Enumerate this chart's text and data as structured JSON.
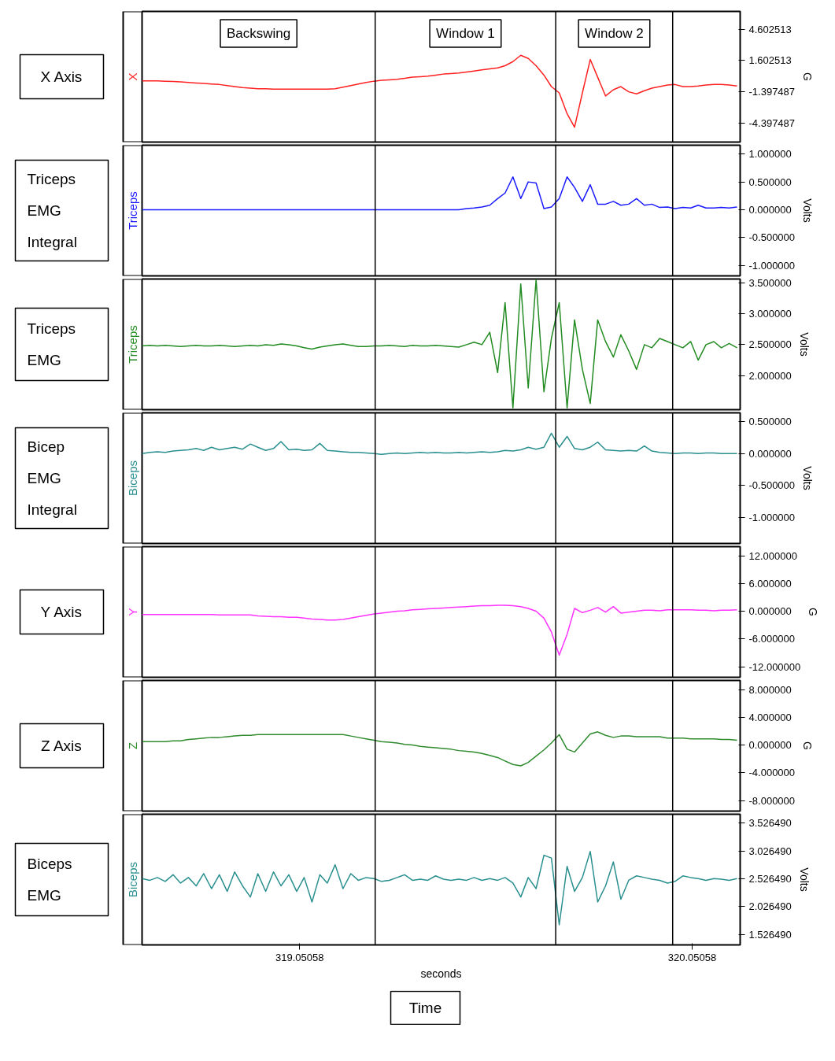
{
  "chart_data": [
    {
      "type": "line",
      "title": "X Axis",
      "ylabel": "G",
      "xlim": [
        318.649,
        320.173
      ],
      "tick_labels": "y",
      "ylim": [
        -6.22,
        6.31
      ],
      "yticks": [
        {
          "value": 4.602513,
          "label": "4.602513"
        },
        {
          "value": 1.602513,
          "label": "1.602513"
        },
        {
          "value": -1.397487,
          "label": "-1.397487"
        },
        {
          "value": -4.397487,
          "label": "-4.397487"
        }
      ],
      "grid": false,
      "x": [
        318.649,
        318.669,
        318.688,
        318.708,
        318.728,
        318.747,
        318.767,
        318.787,
        318.806,
        318.826,
        318.846,
        318.866,
        318.885,
        318.905,
        318.925,
        318.944,
        318.964,
        318.984,
        319.003,
        319.023,
        319.043,
        319.062,
        319.082,
        319.102,
        319.121,
        319.141,
        319.161,
        319.181,
        319.2,
        319.22,
        319.24,
        319.259,
        319.279,
        319.299,
        319.318,
        319.338,
        319.358,
        319.377,
        319.397,
        319.417,
        319.436,
        319.456,
        319.476,
        319.495,
        319.515,
        319.535,
        319.555,
        319.574,
        319.594,
        319.614,
        319.633,
        319.653,
        319.673,
        319.692,
        319.712,
        319.732,
        319.751,
        319.771,
        319.791,
        319.81,
        319.83,
        319.85,
        319.869,
        319.889,
        319.909,
        319.929,
        319.948,
        319.968,
        319.988,
        320.007,
        320.027,
        320.047,
        320.066,
        320.086,
        320.106,
        320.125,
        320.145,
        320.165
      ],
      "series": [
        {
          "name": "X",
          "color": "#ff2020",
          "values": [
            -0.36,
            -0.36,
            -0.36,
            -0.38,
            -0.4,
            -0.45,
            -0.5,
            -0.55,
            -0.6,
            -0.65,
            -0.7,
            -0.8,
            -0.9,
            -1.0,
            -1.05,
            -1.1,
            -1.1,
            -1.15,
            -1.15,
            -1.15,
            -1.15,
            -1.15,
            -1.15,
            -1.15,
            -1.15,
            -1.1,
            -0.95,
            -0.8,
            -0.65,
            -0.5,
            -0.38,
            -0.3,
            -0.25,
            -0.2,
            -0.1,
            0.0,
            0.05,
            0.1,
            0.2,
            0.3,
            0.35,
            0.4,
            0.5,
            0.6,
            0.7,
            0.8,
            0.9,
            1.1,
            1.5,
            2.1,
            1.8,
            1.1,
            0.2,
            -0.9,
            -1.5,
            -3.5,
            -4.8,
            -1.5,
            1.7,
            0.0,
            -1.8,
            -1.2,
            -0.9,
            -1.4,
            -1.6,
            -1.3,
            -1.05,
            -0.9,
            -0.75,
            -0.7,
            -0.9,
            -0.9,
            -0.85,
            -0.75,
            -0.7,
            -0.7,
            -0.75,
            -0.85
          ]
        }
      ],
      "ref_lines": [
        {
          "axis": "x",
          "value": 319.243
        },
        {
          "axis": "x",
          "value": 319.703
        },
        {
          "axis": "x",
          "value": 320.001
        }
      ],
      "annotations": [
        "Backswing",
        "Window 1",
        "Window 2"
      ]
    },
    {
      "type": "line",
      "title": "Triceps EMG Integral",
      "ylabel": "Volts",
      "xlim": [
        318.649,
        320.173
      ],
      "tick_labels": "y",
      "ylim": [
        -1.19,
        1.16
      ],
      "yticks": [
        {
          "value": 1,
          "label": "1.000000"
        },
        {
          "value": 0.5,
          "label": "0.500000"
        },
        {
          "value": 0,
          "label": "0.000000"
        },
        {
          "value": -0.5,
          "label": "-0.500000"
        },
        {
          "value": -1,
          "label": "-1.000000"
        }
      ],
      "grid": false,
      "x": [
        318.649,
        318.669,
        318.688,
        318.708,
        318.728,
        318.747,
        318.767,
        318.787,
        318.806,
        318.826,
        318.846,
        318.866,
        318.885,
        318.905,
        318.925,
        318.944,
        318.964,
        318.984,
        319.003,
        319.023,
        319.043,
        319.062,
        319.082,
        319.102,
        319.121,
        319.141,
        319.161,
        319.181,
        319.2,
        319.22,
        319.24,
        319.259,
        319.279,
        319.299,
        319.318,
        319.338,
        319.358,
        319.377,
        319.397,
        319.417,
        319.436,
        319.456,
        319.476,
        319.495,
        319.515,
        319.535,
        319.555,
        319.574,
        319.594,
        319.614,
        319.633,
        319.653,
        319.673,
        319.692,
        319.712,
        319.732,
        319.751,
        319.771,
        319.791,
        319.81,
        319.83,
        319.85,
        319.869,
        319.889,
        319.909,
        319.929,
        319.948,
        319.968,
        319.988,
        320.007,
        320.027,
        320.047,
        320.066,
        320.086,
        320.106,
        320.125,
        320.145,
        320.165
      ],
      "series": [
        {
          "name": "Triceps",
          "color": "#1a1aff",
          "values": [
            0,
            0,
            0,
            0,
            0,
            0,
            0,
            0,
            0,
            0,
            0,
            0,
            0,
            0,
            0,
            0,
            0,
            0,
            0,
            0,
            0,
            0,
            0,
            0,
            0,
            0,
            0,
            0,
            0,
            0,
            0,
            0,
            0,
            0,
            0,
            0,
            0,
            0,
            0,
            0,
            0,
            0,
            0.02,
            0.03,
            0.05,
            0.08,
            0.2,
            0.3,
            0.59,
            0.2,
            0.5,
            0.48,
            0.02,
            0.05,
            0.2,
            0.59,
            0.4,
            0.15,
            0.45,
            0.1,
            0.1,
            0.15,
            0.08,
            0.1,
            0.2,
            0.08,
            0.1,
            0.04,
            0.05,
            0.02,
            0.04,
            0.03,
            0.08,
            0.03,
            0.03,
            0.04,
            0.03,
            0.05
          ]
        }
      ],
      "ref_lines": [
        {
          "axis": "x",
          "value": 319.243
        },
        {
          "axis": "x",
          "value": 319.703
        },
        {
          "axis": "x",
          "value": 320.001
        }
      ]
    },
    {
      "type": "line",
      "title": "Triceps EMG",
      "ylabel": "Volts",
      "xlim": [
        318.649,
        320.173
      ],
      "tick_labels": "y",
      "ylim": [
        1.45,
        3.56
      ],
      "yticks": [
        {
          "value": 3.5,
          "label": "3.500000"
        },
        {
          "value": 3,
          "label": "3.000000"
        },
        {
          "value": 2.5,
          "label": "2.500000"
        },
        {
          "value": 2,
          "label": "2.000000"
        }
      ],
      "grid": false,
      "x": [
        318.649,
        318.669,
        318.688,
        318.708,
        318.728,
        318.747,
        318.767,
        318.787,
        318.806,
        318.826,
        318.846,
        318.866,
        318.885,
        318.905,
        318.925,
        318.944,
        318.964,
        318.984,
        319.003,
        319.023,
        319.043,
        319.062,
        319.082,
        319.102,
        319.121,
        319.141,
        319.161,
        319.181,
        319.2,
        319.22,
        319.24,
        319.259,
        319.279,
        319.299,
        319.318,
        319.338,
        319.358,
        319.377,
        319.397,
        319.417,
        319.436,
        319.456,
        319.476,
        319.495,
        319.515,
        319.535,
        319.555,
        319.574,
        319.594,
        319.614,
        319.633,
        319.653,
        319.673,
        319.692,
        319.712,
        319.732,
        319.751,
        319.771,
        319.791,
        319.81,
        319.83,
        319.85,
        319.869,
        319.889,
        319.909,
        319.929,
        319.948,
        319.968,
        319.988,
        320.007,
        320.027,
        320.047,
        320.066,
        320.086,
        320.106,
        320.125,
        320.145,
        320.165
      ],
      "series": [
        {
          "name": "Triceps",
          "color": "#228b22",
          "values": [
            2.48,
            2.49,
            2.48,
            2.49,
            2.48,
            2.47,
            2.48,
            2.49,
            2.48,
            2.48,
            2.49,
            2.48,
            2.47,
            2.48,
            2.49,
            2.48,
            2.5,
            2.49,
            2.51,
            2.5,
            2.48,
            2.45,
            2.43,
            2.46,
            2.48,
            2.5,
            2.51,
            2.49,
            2.47,
            2.47,
            2.48,
            2.48,
            2.49,
            2.48,
            2.47,
            2.49,
            2.48,
            2.48,
            2.49,
            2.48,
            2.47,
            2.46,
            2.5,
            2.54,
            2.5,
            2.7,
            2.05,
            3.18,
            1.48,
            3.48,
            1.8,
            3.55,
            1.74,
            2.6,
            3.18,
            1.48,
            2.9,
            2.1,
            1.55,
            2.9,
            2.55,
            2.3,
            2.66,
            2.4,
            2.1,
            2.5,
            2.45,
            2.6,
            2.55,
            2.5,
            2.45,
            2.55,
            2.25,
            2.5,
            2.55,
            2.45,
            2.52,
            2.45
          ]
        }
      ],
      "ref_lines": [
        {
          "axis": "x",
          "value": 319.243
        },
        {
          "axis": "x",
          "value": 319.703
        },
        {
          "axis": "x",
          "value": 320.001
        }
      ]
    },
    {
      "type": "line",
      "title": "Bicep EMG Integral",
      "ylabel": "Volts",
      "xlim": [
        318.649,
        320.173
      ],
      "tick_labels": "y",
      "ylim": [
        -1.41,
        0.64
      ],
      "yticks": [
        {
          "value": 0.5,
          "label": "0.500000"
        },
        {
          "value": 0,
          "label": "0.000000"
        },
        {
          "value": -0.5,
          "label": "-0.500000"
        },
        {
          "value": -1,
          "label": "-1.000000"
        }
      ],
      "grid": false,
      "x": [
        318.649,
        318.669,
        318.688,
        318.708,
        318.728,
        318.747,
        318.767,
        318.787,
        318.806,
        318.826,
        318.846,
        318.866,
        318.885,
        318.905,
        318.925,
        318.944,
        318.964,
        318.984,
        319.003,
        319.023,
        319.043,
        319.062,
        319.082,
        319.102,
        319.121,
        319.141,
        319.161,
        319.181,
        319.2,
        319.22,
        319.24,
        319.259,
        319.279,
        319.299,
        319.318,
        319.338,
        319.358,
        319.377,
        319.397,
        319.417,
        319.436,
        319.456,
        319.476,
        319.495,
        319.515,
        319.535,
        319.555,
        319.574,
        319.594,
        319.614,
        319.633,
        319.653,
        319.673,
        319.692,
        319.712,
        319.732,
        319.751,
        319.771,
        319.791,
        319.81,
        319.83,
        319.85,
        319.869,
        319.889,
        319.909,
        319.929,
        319.948,
        319.968,
        319.988,
        320.007,
        320.027,
        320.047,
        320.066,
        320.086,
        320.106,
        320.125,
        320.145,
        320.165
      ],
      "series": [
        {
          "name": "Biceps",
          "color": "#2a8f8f",
          "values": [
            0.0,
            0.02,
            0.03,
            0.02,
            0.04,
            0.05,
            0.06,
            0.08,
            0.05,
            0.1,
            0.06,
            0.08,
            0.1,
            0.07,
            0.15,
            0.1,
            0.05,
            0.08,
            0.19,
            0.06,
            0.07,
            0.05,
            0.06,
            0.16,
            0.05,
            0.04,
            0.03,
            0.02,
            0.02,
            0.01,
            0.0,
            -0.01,
            0.0,
            0.01,
            0.0,
            0.01,
            0.02,
            0.01,
            0.02,
            0.01,
            0.01,
            0.02,
            0.01,
            0.02,
            0.03,
            0.02,
            0.03,
            0.05,
            0.04,
            0.06,
            0.1,
            0.07,
            0.1,
            0.32,
            0.1,
            0.27,
            0.08,
            0.06,
            0.1,
            0.18,
            0.06,
            0.05,
            0.04,
            0.05,
            0.04,
            0.12,
            0.04,
            0.02,
            0.01,
            0.0,
            0.01,
            0.01,
            0.0,
            0.01,
            0.01,
            0.0,
            0.0,
            0.0
          ]
        }
      ],
      "ref_lines": [
        {
          "axis": "x",
          "value": 319.243
        },
        {
          "axis": "x",
          "value": 319.703
        },
        {
          "axis": "x",
          "value": 320.001
        }
      ]
    },
    {
      "type": "line",
      "title": "Y Axis",
      "ylabel": "G",
      "xlim": [
        318.649,
        320.173
      ],
      "tick_labels": "y",
      "ylim": [
        -14.29,
        13.96
      ],
      "yticks": [
        {
          "value": 12,
          "label": "12.000000"
        },
        {
          "value": 6,
          "label": "6.000000"
        },
        {
          "value": 0,
          "label": "0.000000"
        },
        {
          "value": -6,
          "label": "-6.000000"
        },
        {
          "value": -12,
          "label": "-12.000000"
        }
      ],
      "grid": false,
      "x": [
        318.649,
        318.669,
        318.688,
        318.708,
        318.728,
        318.747,
        318.767,
        318.787,
        318.806,
        318.826,
        318.846,
        318.866,
        318.885,
        318.905,
        318.925,
        318.944,
        318.964,
        318.984,
        319.003,
        319.023,
        319.043,
        319.062,
        319.082,
        319.102,
        319.121,
        319.141,
        319.161,
        319.181,
        319.2,
        319.22,
        319.24,
        319.259,
        319.279,
        319.299,
        319.318,
        319.338,
        319.358,
        319.377,
        319.397,
        319.417,
        319.436,
        319.456,
        319.476,
        319.495,
        319.515,
        319.535,
        319.555,
        319.574,
        319.594,
        319.614,
        319.633,
        319.653,
        319.673,
        319.692,
        319.712,
        319.732,
        319.751,
        319.771,
        319.791,
        319.81,
        319.83,
        319.85,
        319.869,
        319.889,
        319.909,
        319.929,
        319.948,
        319.968,
        319.988,
        320.007,
        320.027,
        320.047,
        320.066,
        320.086,
        320.106,
        320.125,
        320.145,
        320.165
      ],
      "series": [
        {
          "name": "Y",
          "color": "#ff33ff",
          "values": [
            -0.7,
            -0.7,
            -0.7,
            -0.7,
            -0.7,
            -0.7,
            -0.7,
            -0.7,
            -0.7,
            -0.7,
            -0.8,
            -0.8,
            -0.8,
            -0.8,
            -0.8,
            -1.0,
            -1.1,
            -1.2,
            -1.2,
            -1.3,
            -1.3,
            -1.5,
            -1.7,
            -1.8,
            -1.9,
            -1.9,
            -1.8,
            -1.5,
            -1.2,
            -0.9,
            -0.6,
            -0.4,
            -0.2,
            0.0,
            0.1,
            0.3,
            0.4,
            0.5,
            0.6,
            0.7,
            0.8,
            0.9,
            1.0,
            1.1,
            1.2,
            1.2,
            1.3,
            1.3,
            1.2,
            1.0,
            0.6,
            0.0,
            -1.5,
            -4.5,
            -9.5,
            -5.0,
            0.6,
            -0.3,
            0.2,
            0.8,
            -0.2,
            1.0,
            -0.4,
            -0.2,
            0.0,
            0.2,
            0.2,
            0.1,
            0.3,
            0.3,
            0.3,
            0.3,
            0.2,
            0.2,
            0.1,
            0.2,
            0.2,
            0.3
          ]
        }
      ],
      "ref_lines": [
        {
          "axis": "x",
          "value": 319.243
        },
        {
          "axis": "x",
          "value": 319.703
        },
        {
          "axis": "x",
          "value": 320.001
        }
      ]
    },
    {
      "type": "line",
      "title": "Z Axis",
      "ylabel": "G",
      "xlim": [
        318.649,
        320.173
      ],
      "tick_labels": "y",
      "ylim": [
        -9.52,
        9.31
      ],
      "yticks": [
        {
          "value": 8,
          "label": "8.000000"
        },
        {
          "value": 4,
          "label": "4.000000"
        },
        {
          "value": 0,
          "label": "0.000000"
        },
        {
          "value": -4,
          "label": "-4.000000"
        },
        {
          "value": -8,
          "label": "-8.000000"
        }
      ],
      "grid": false,
      "x": [
        318.649,
        318.669,
        318.688,
        318.708,
        318.728,
        318.747,
        318.767,
        318.787,
        318.806,
        318.826,
        318.846,
        318.866,
        318.885,
        318.905,
        318.925,
        318.944,
        318.964,
        318.984,
        319.003,
        319.023,
        319.043,
        319.062,
        319.082,
        319.102,
        319.121,
        319.141,
        319.161,
        319.181,
        319.2,
        319.22,
        319.24,
        319.259,
        319.279,
        319.299,
        319.318,
        319.338,
        319.358,
        319.377,
        319.397,
        319.417,
        319.436,
        319.456,
        319.476,
        319.495,
        319.515,
        319.535,
        319.555,
        319.574,
        319.594,
        319.614,
        319.633,
        319.653,
        319.673,
        319.692,
        319.712,
        319.732,
        319.751,
        319.771,
        319.791,
        319.81,
        319.83,
        319.85,
        319.869,
        319.889,
        319.909,
        319.929,
        319.948,
        319.968,
        319.988,
        320.007,
        320.027,
        320.047,
        320.066,
        320.086,
        320.106,
        320.125,
        320.145,
        320.165
      ],
      "series": [
        {
          "name": "Z",
          "color": "#2e8b2e",
          "values": [
            0.5,
            0.5,
            0.5,
            0.5,
            0.6,
            0.6,
            0.8,
            0.9,
            1.0,
            1.1,
            1.1,
            1.2,
            1.3,
            1.4,
            1.4,
            1.5,
            1.5,
            1.5,
            1.5,
            1.5,
            1.5,
            1.5,
            1.5,
            1.5,
            1.5,
            1.5,
            1.5,
            1.3,
            1.1,
            0.9,
            0.7,
            0.5,
            0.4,
            0.3,
            0.1,
            0.0,
            -0.2,
            -0.3,
            -0.4,
            -0.5,
            -0.6,
            -0.8,
            -0.9,
            -1.0,
            -1.2,
            -1.5,
            -1.8,
            -2.3,
            -2.8,
            -3.0,
            -2.5,
            -1.6,
            -0.7,
            0.3,
            1.5,
            -0.6,
            -1.0,
            0.3,
            1.6,
            1.9,
            1.4,
            1.1,
            1.3,
            1.3,
            1.2,
            1.2,
            1.2,
            1.2,
            1.0,
            1.0,
            1.0,
            0.9,
            0.9,
            0.9,
            0.9,
            0.8,
            0.8,
            0.7
          ]
        }
      ],
      "ref_lines": [
        {
          "axis": "x",
          "value": 319.243
        },
        {
          "axis": "x",
          "value": 319.703
        },
        {
          "axis": "x",
          "value": 320.001
        }
      ]
    },
    {
      "type": "line",
      "title": "Biceps EMG",
      "ylabel": "Volts",
      "xlabel": "seconds",
      "xlim": [
        318.649,
        320.173
      ],
      "xticks": [
        319.05058,
        320.05058
      ],
      "ylim": [
        1.339,
        3.687
      ],
      "yticks": [
        {
          "value": 3.52649,
          "label": "3.526490"
        },
        {
          "value": 3.02649,
          "label": "3.026490"
        },
        {
          "value": 2.52649,
          "label": "2.526490"
        },
        {
          "value": 2.02649,
          "label": "2.026490"
        },
        {
          "value": 1.52649,
          "label": "1.526490"
        }
      ],
      "grid": false,
      "x": [
        318.649,
        318.669,
        318.688,
        318.708,
        318.728,
        318.747,
        318.767,
        318.787,
        318.806,
        318.826,
        318.846,
        318.866,
        318.885,
        318.905,
        318.925,
        318.944,
        318.964,
        318.984,
        319.003,
        319.023,
        319.043,
        319.062,
        319.082,
        319.102,
        319.121,
        319.141,
        319.161,
        319.181,
        319.2,
        319.22,
        319.24,
        319.259,
        319.279,
        319.299,
        319.318,
        319.338,
        319.358,
        319.377,
        319.397,
        319.417,
        319.436,
        319.456,
        319.476,
        319.495,
        319.515,
        319.535,
        319.555,
        319.574,
        319.594,
        319.614,
        319.633,
        319.653,
        319.673,
        319.692,
        319.712,
        319.732,
        319.751,
        319.771,
        319.791,
        319.81,
        319.83,
        319.85,
        319.869,
        319.889,
        319.909,
        319.929,
        319.948,
        319.968,
        319.988,
        320.007,
        320.027,
        320.047,
        320.066,
        320.086,
        320.106,
        320.125,
        320.145,
        320.165
      ],
      "series": [
        {
          "name": "Biceps",
          "color": "#2a8f8f",
          "values": [
            2.53,
            2.5,
            2.55,
            2.48,
            2.6,
            2.45,
            2.55,
            2.4,
            2.62,
            2.35,
            2.6,
            2.3,
            2.65,
            2.4,
            2.2,
            2.62,
            2.3,
            2.65,
            2.4,
            2.6,
            2.3,
            2.55,
            2.11,
            2.6,
            2.45,
            2.78,
            2.35,
            2.62,
            2.5,
            2.55,
            2.53,
            2.48,
            2.5,
            2.55,
            2.6,
            2.5,
            2.52,
            2.5,
            2.58,
            2.52,
            2.5,
            2.52,
            2.5,
            2.55,
            2.5,
            2.53,
            2.5,
            2.55,
            2.45,
            2.2,
            2.55,
            2.35,
            2.95,
            2.9,
            1.7,
            2.75,
            2.3,
            2.55,
            3.02,
            2.11,
            2.4,
            2.83,
            2.16,
            2.5,
            2.58,
            2.55,
            2.52,
            2.5,
            2.45,
            2.48,
            2.58,
            2.55,
            2.53,
            2.5,
            2.53,
            2.52,
            2.5,
            2.53
          ]
        }
      ],
      "ref_lines": [
        {
          "axis": "x",
          "value": 319.243
        },
        {
          "axis": "x",
          "value": 319.703
        },
        {
          "axis": "x",
          "value": 320.001
        }
      ],
      "annotations": [
        "Time"
      ]
    }
  ]
}
